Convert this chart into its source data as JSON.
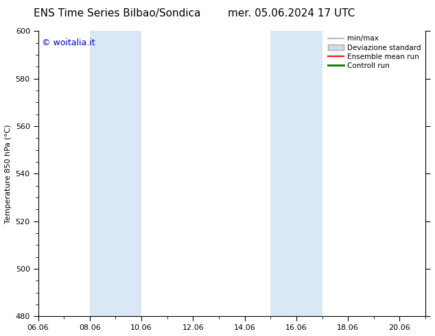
{
  "title": "ENS Time Series Bilbao/Sondica",
  "title2": "mer. 05.06.2024 17 UTC",
  "ylabel": "Temperature 850 hPa (°C)",
  "ylim": [
    480,
    600
  ],
  "yticks": [
    480,
    500,
    520,
    540,
    560,
    580,
    600
  ],
  "xlim": [
    0,
    15
  ],
  "xtick_labels": [
    "06.06",
    "08.06",
    "10.06",
    "12.06",
    "14.06",
    "16.06",
    "18.06",
    "20.06"
  ],
  "xtick_positions": [
    0,
    2,
    4,
    6,
    8,
    10,
    12,
    14
  ],
  "shaded_bands": [
    {
      "x_start": 2,
      "x_end": 4,
      "color": "#dae8f5"
    },
    {
      "x_start": 9,
      "x_end": 11,
      "color": "#dae8f5"
    }
  ],
  "watermark_text": "© woitalia.it",
  "watermark_color": "#0000cc",
  "watermark_fontsize": 9,
  "legend_items": [
    {
      "label": "min/max",
      "color": "#aaaaaa",
      "lw": 1.2,
      "style": "line"
    },
    {
      "label": "Deviazione standard",
      "color": "#ccddee",
      "edgecolor": "#aaaaaa",
      "style": "patch"
    },
    {
      "label": "Ensemble mean run",
      "color": "#ff0000",
      "lw": 1.5,
      "style": "line"
    },
    {
      "label": "Controll run",
      "color": "#007700",
      "lw": 2.0,
      "style": "line"
    }
  ],
  "bg_color": "#ffffff",
  "plot_bg_color": "#ffffff",
  "title_fontsize": 11,
  "axis_fontsize": 8,
  "tick_fontsize": 8,
  "legend_fontsize": 7.5
}
